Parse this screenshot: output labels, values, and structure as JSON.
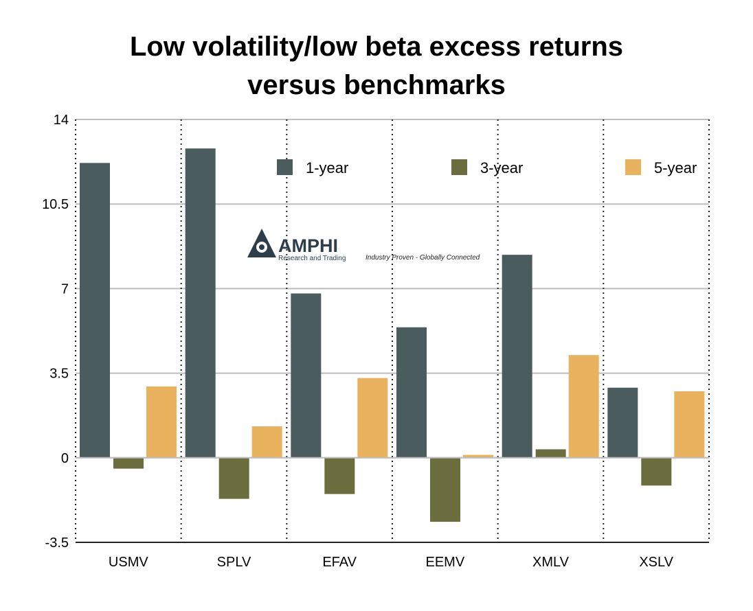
{
  "chart_data": {
    "type": "bar",
    "title_lines": [
      "Low volatility/low beta excess returns",
      "versus benchmarks"
    ],
    "categories": [
      "USMV",
      "SPLV",
      "EFAV",
      "EEMV",
      "XMLV",
      "XSLV"
    ],
    "series": [
      {
        "name": "1-year",
        "color": "#4b5c5f",
        "values": [
          12.2,
          12.8,
          6.8,
          5.4,
          8.4,
          2.9
        ]
      },
      {
        "name": "3-year",
        "color": "#6b6d3e",
        "values": [
          -0.45,
          -1.7,
          -1.5,
          -2.65,
          0.35,
          -1.15
        ]
      },
      {
        "name": "5-year",
        "color": "#e8b25f",
        "values": [
          2.95,
          1.3,
          3.3,
          0.12,
          4.25,
          2.75
        ]
      }
    ],
    "yticks": [
      "14",
      "10.5",
      "7",
      "3.5",
      "0",
      "-3.5"
    ],
    "ylim": [
      -3.5,
      14
    ],
    "xlabel": "",
    "ylabel": "",
    "grid": true,
    "legend": "top",
    "watermark": {
      "name": "AMPHI",
      "sub": "Research and Trading",
      "tagline": "Industry Proven - Globally Connected",
      "color": "#2d3e4a"
    }
  }
}
